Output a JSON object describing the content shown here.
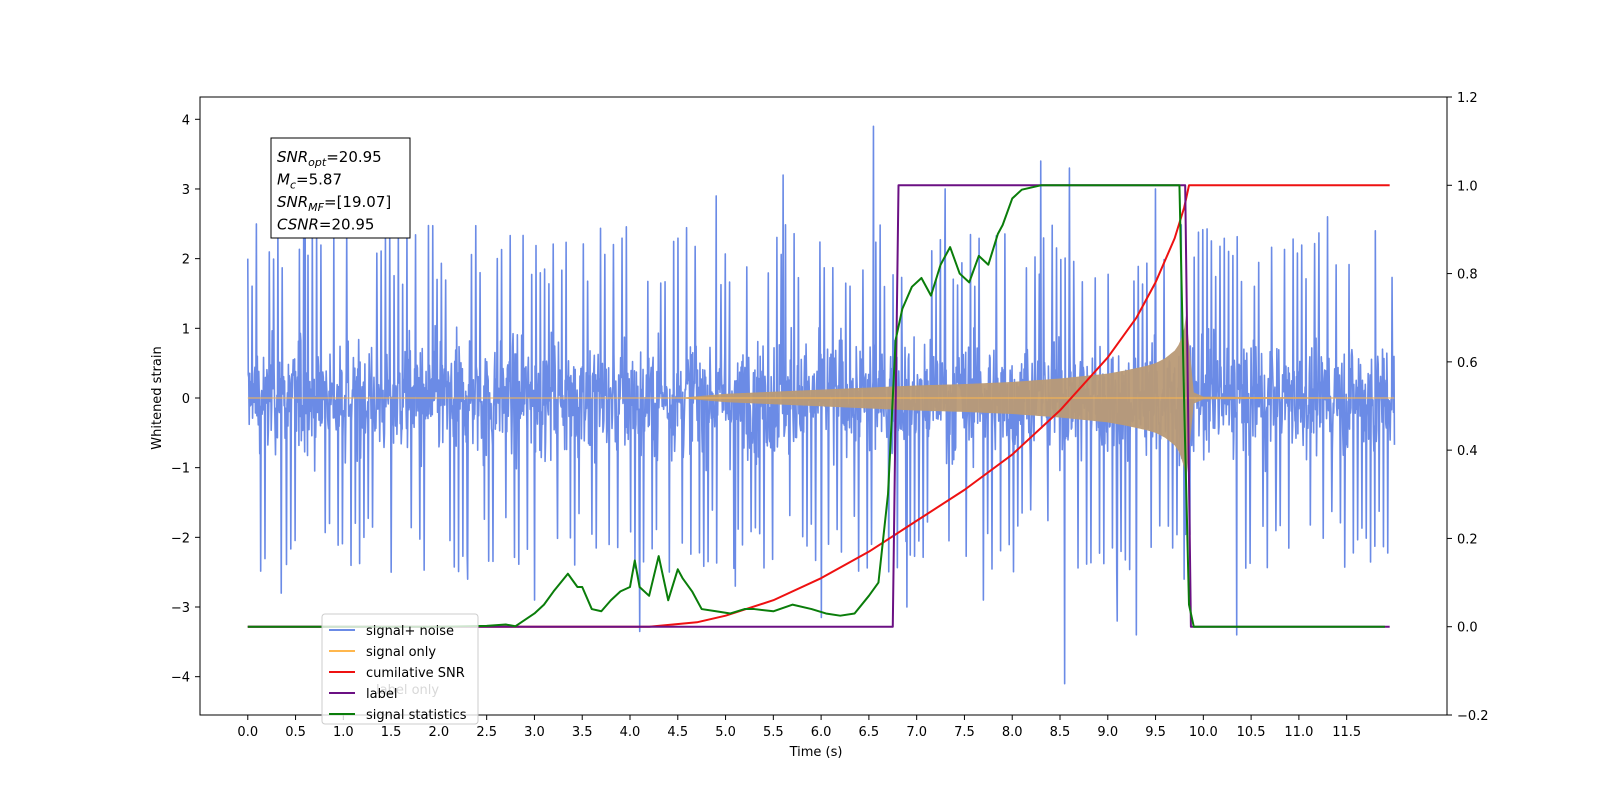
{
  "chart_data": {
    "type": "line",
    "xlabel": "Time (s)",
    "ylabel": "Whitened strain",
    "xlim": [
      -0.5,
      12.55
    ],
    "ylim": [
      -4.55,
      4.32
    ],
    "ylim_right": [
      -0.2,
      1.2
    ],
    "x_ticks": [
      "0.0",
      "0.5",
      "1.0",
      "1.5",
      "2.0",
      "2.5",
      "3.0",
      "3.5",
      "4.0",
      "4.5",
      "5.0",
      "5.5",
      "6.0",
      "6.5",
      "7.0",
      "7.5",
      "8.0",
      "8.5",
      "9.0",
      "9.5",
      "10.0",
      "10.5",
      "11.0",
      "11.5"
    ],
    "y_ticks": [
      "−4",
      "−3",
      "−2",
      "−1",
      "0",
      "1",
      "2",
      "3",
      "4"
    ],
    "y_ticks_right": [
      "−0.2",
      "0.0",
      "0.2",
      "0.4",
      "0.6",
      "0.8",
      "1.0",
      "1.2"
    ],
    "grid": false,
    "legend_position": "lower-left",
    "colors": {
      "noise": "#6b8be6",
      "signal": "#ffb74d",
      "envelope": "#b99a76",
      "csnr": "#ee1111",
      "label": "#6b1083",
      "stats": "#0a7d0a"
    },
    "series": [
      {
        "name": "signal+ noise",
        "axis": "left",
        "style": "dense noise about 0, typical amplitude ±1.3 with spikes to ±2.5 (max ≈ 3.9 near t=6.55, min ≈ −4.1 near t=8.55)",
        "x_range": [
          0.0,
          12.0
        ],
        "spikes": [
          [
            0.0,
            2.0
          ],
          [
            0.35,
            -2.8
          ],
          [
            0.6,
            2.6
          ],
          [
            1.5,
            -2.5
          ],
          [
            2.3,
            -2.6
          ],
          [
            3.0,
            -2.9
          ],
          [
            4.1,
            -3.35
          ],
          [
            4.9,
            2.9
          ],
          [
            5.1,
            -2.7
          ],
          [
            5.6,
            3.2
          ],
          [
            6.0,
            -3.15
          ],
          [
            6.55,
            3.9
          ],
          [
            6.9,
            -3.0
          ],
          [
            7.3,
            3.0
          ],
          [
            7.7,
            -2.9
          ],
          [
            8.3,
            3.4
          ],
          [
            8.55,
            -4.1
          ],
          [
            8.6,
            3.3
          ],
          [
            9.1,
            -3.2
          ],
          [
            9.3,
            -3.4
          ],
          [
            9.5,
            3.0
          ],
          [
            9.8,
            -2.6
          ],
          [
            10.35,
            -3.4
          ],
          [
            11.3,
            2.6
          ],
          [
            11.8,
            2.4
          ]
        ]
      },
      {
        "name": "signal only",
        "axis": "left",
        "style": "chirp; amplitude envelope grows from ~0 to ≈1.2 at t≈9.82 then ringdown to 0",
        "envelope": {
          "x": [
            0.0,
            4.5,
            5.0,
            6.0,
            7.0,
            7.5,
            8.0,
            8.5,
            9.0,
            9.2,
            9.4,
            9.5,
            9.6,
            9.7,
            9.75,
            9.8,
            9.82,
            9.9,
            10.0,
            12.0
          ],
          "amp": [
            0.0,
            0.0,
            0.06,
            0.12,
            0.18,
            0.2,
            0.23,
            0.28,
            0.35,
            0.4,
            0.46,
            0.5,
            0.57,
            0.68,
            0.78,
            1.0,
            1.2,
            0.08,
            0.02,
            0.0
          ]
        }
      },
      {
        "name": "cumilative SNR",
        "axis": "right",
        "x": [
          0.0,
          3.7,
          4.2,
          4.7,
          5.0,
          5.5,
          6.0,
          6.5,
          7.0,
          7.5,
          8.0,
          8.5,
          9.0,
          9.3,
          9.5,
          9.7,
          9.8,
          9.85,
          9.9,
          11.95
        ],
        "y": [
          0.0,
          0.0,
          0.0,
          0.01,
          0.025,
          0.06,
          0.11,
          0.17,
          0.24,
          0.31,
          0.39,
          0.49,
          0.61,
          0.7,
          0.78,
          0.88,
          0.95,
          1.0,
          1.0,
          1.0
        ]
      },
      {
        "name": "label",
        "axis": "right",
        "x": [
          0.0,
          6.75,
          6.81,
          9.81,
          9.87,
          11.95
        ],
        "y": [
          0.0,
          0.0,
          1.0,
          1.0,
          0.0,
          0.0
        ]
      },
      {
        "name": "signal statistics",
        "axis": "right",
        "x": [
          0.0,
          2.0,
          2.5,
          2.7,
          2.8,
          3.0,
          3.1,
          3.2,
          3.35,
          3.45,
          3.5,
          3.6,
          3.7,
          3.8,
          3.9,
          4.0,
          4.05,
          4.1,
          4.2,
          4.3,
          4.4,
          4.5,
          4.55,
          4.65,
          4.75,
          4.9,
          5.05,
          5.2,
          5.3,
          5.5,
          5.7,
          5.9,
          6.05,
          6.2,
          6.35,
          6.5,
          6.6,
          6.7,
          6.78,
          6.85,
          6.95,
          7.05,
          7.15,
          7.25,
          7.35,
          7.45,
          7.55,
          7.65,
          7.75,
          7.85,
          7.9,
          8.0,
          8.1,
          8.3,
          9.4,
          9.75,
          9.8,
          9.85,
          9.9,
          10.0,
          11.9
        ],
        "y": [
          0.0,
          0.0,
          0.002,
          0.005,
          0.001,
          0.03,
          0.05,
          0.08,
          0.12,
          0.09,
          0.09,
          0.04,
          0.035,
          0.06,
          0.08,
          0.09,
          0.15,
          0.09,
          0.07,
          0.16,
          0.06,
          0.13,
          0.11,
          0.08,
          0.04,
          0.035,
          0.03,
          0.04,
          0.04,
          0.035,
          0.05,
          0.04,
          0.03,
          0.025,
          0.03,
          0.07,
          0.1,
          0.3,
          0.65,
          0.72,
          0.77,
          0.79,
          0.75,
          0.82,
          0.86,
          0.8,
          0.78,
          0.84,
          0.82,
          0.89,
          0.91,
          0.97,
          0.99,
          1.0,
          1.0,
          1.0,
          0.5,
          0.05,
          0.0,
          0.0,
          0.0
        ]
      }
    ],
    "annotation": {
      "lines": [
        {
          "sym": "SNR",
          "sub": "opt",
          "val": "=20.95"
        },
        {
          "sym": "M",
          "sub": "c",
          "val": "=5.87"
        },
        {
          "sym": "SNR",
          "sub": "MF",
          "val": "=[19.07]"
        },
        {
          "sym": "CSNR",
          "sub": "",
          "val": "=20.95"
        }
      ]
    },
    "legend": [
      {
        "label": "signal+ noise",
        "color": "#6b8be6"
      },
      {
        "label": "signal only",
        "color": "#ffb74d"
      },
      {
        "label": "cumilative SNR",
        "color": "#ee1111"
      },
      {
        "label": "label",
        "color": "#6b1083"
      },
      {
        "label": "signal statistics",
        "color": "#0a7d0a"
      }
    ],
    "legend_overlay_text": "label only"
  }
}
